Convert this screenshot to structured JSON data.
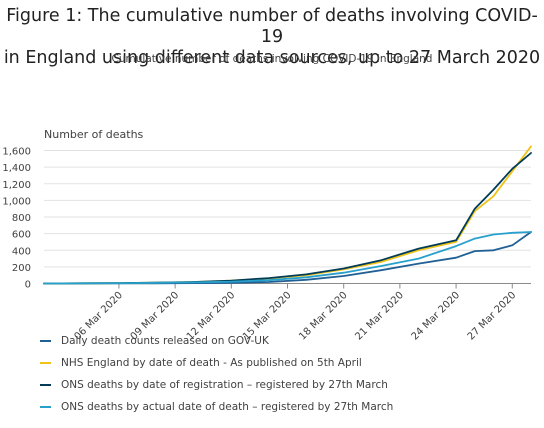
{
  "title_line1": "Figure 1: The cumulative number of deaths involving COVID-19",
  "title_line2": "in England using different data sources, up to 27 March 2020",
  "subtitle": "Cumulative number of deaths involving COVID-19 in England",
  "chart_data": {
    "type": "line",
    "ylabel": "Number of deaths",
    "ylim": [
      0,
      1700
    ],
    "yticks": [
      0,
      200,
      400,
      600,
      800,
      1000,
      1200,
      1400,
      1600
    ],
    "ytick_labels": [
      "0",
      "200",
      "400",
      "600",
      "800",
      "1,000",
      "1,200",
      "1,400",
      "1,600"
    ],
    "x_range": [
      "2020-03-02",
      "2020-03-28"
    ],
    "x_ticks": [
      "2020-03-06",
      "2020-03-09",
      "2020-03-12",
      "2020-03-15",
      "2020-03-18",
      "2020-03-21",
      "2020-03-24",
      "2020-03-27"
    ],
    "x_tick_labels": [
      "06 Mar 2020",
      "09 Mar 2020",
      "12 Mar 2020",
      "15 Mar 2020",
      "18 Mar 2020",
      "21 Mar 2020",
      "24 Mar 2020",
      "27 Mar 2020"
    ],
    "grid": "horizontal",
    "legend_position": "bottom",
    "series": [
      {
        "name": "Daily death counts released on GOV-UK",
        "color": "#206095",
        "x": [
          "2020-03-02",
          "2020-03-04",
          "2020-03-06",
          "2020-03-08",
          "2020-03-10",
          "2020-03-12",
          "2020-03-14",
          "2020-03-16",
          "2020-03-18",
          "2020-03-20",
          "2020-03-22",
          "2020-03-24",
          "2020-03-25",
          "2020-03-26",
          "2020-03-27",
          "2020-03-28"
        ],
        "values": [
          0,
          1,
          2,
          3,
          5,
          8,
          18,
          45,
          90,
          160,
          240,
          310,
          390,
          400,
          460,
          620
        ]
      },
      {
        "name": "NHS England by date of death - As published on 5th April",
        "color": "#f0c318",
        "x": [
          "2020-03-02",
          "2020-03-04",
          "2020-03-06",
          "2020-03-08",
          "2020-03-10",
          "2020-03-12",
          "2020-03-14",
          "2020-03-16",
          "2020-03-18",
          "2020-03-20",
          "2020-03-22",
          "2020-03-24",
          "2020-03-25",
          "2020-03-26",
          "2020-03-27",
          "2020-03-28"
        ],
        "values": [
          0,
          2,
          5,
          10,
          18,
          35,
          60,
          100,
          170,
          260,
          400,
          500,
          870,
          1050,
          1350,
          1650
        ]
      },
      {
        "name": "ONS deaths by date of registration – registered by 27th March",
        "color": "#003c57",
        "x": [
          "2020-03-02",
          "2020-03-04",
          "2020-03-06",
          "2020-03-08",
          "2020-03-10",
          "2020-03-12",
          "2020-03-14",
          "2020-03-16",
          "2020-03-18",
          "2020-03-20",
          "2020-03-22",
          "2020-03-24",
          "2020-03-25",
          "2020-03-26",
          "2020-03-27",
          "2020-03-28"
        ],
        "values": [
          0,
          2,
          5,
          10,
          18,
          35,
          65,
          110,
          180,
          280,
          420,
          520,
          900,
          1130,
          1380,
          1570
        ]
      },
      {
        "name": "ONS deaths by actual date of death – registered by 27th March",
        "color": "#27a0cc",
        "x": [
          "2020-03-02",
          "2020-03-04",
          "2020-03-06",
          "2020-03-08",
          "2020-03-10",
          "2020-03-12",
          "2020-03-14",
          "2020-03-16",
          "2020-03-18",
          "2020-03-20",
          "2020-03-22",
          "2020-03-24",
          "2020-03-25",
          "2020-03-26",
          "2020-03-27",
          "2020-03-28"
        ],
        "values": [
          0,
          2,
          4,
          8,
          14,
          22,
          40,
          75,
          130,
          210,
          300,
          450,
          540,
          590,
          610,
          620
        ]
      }
    ]
  }
}
